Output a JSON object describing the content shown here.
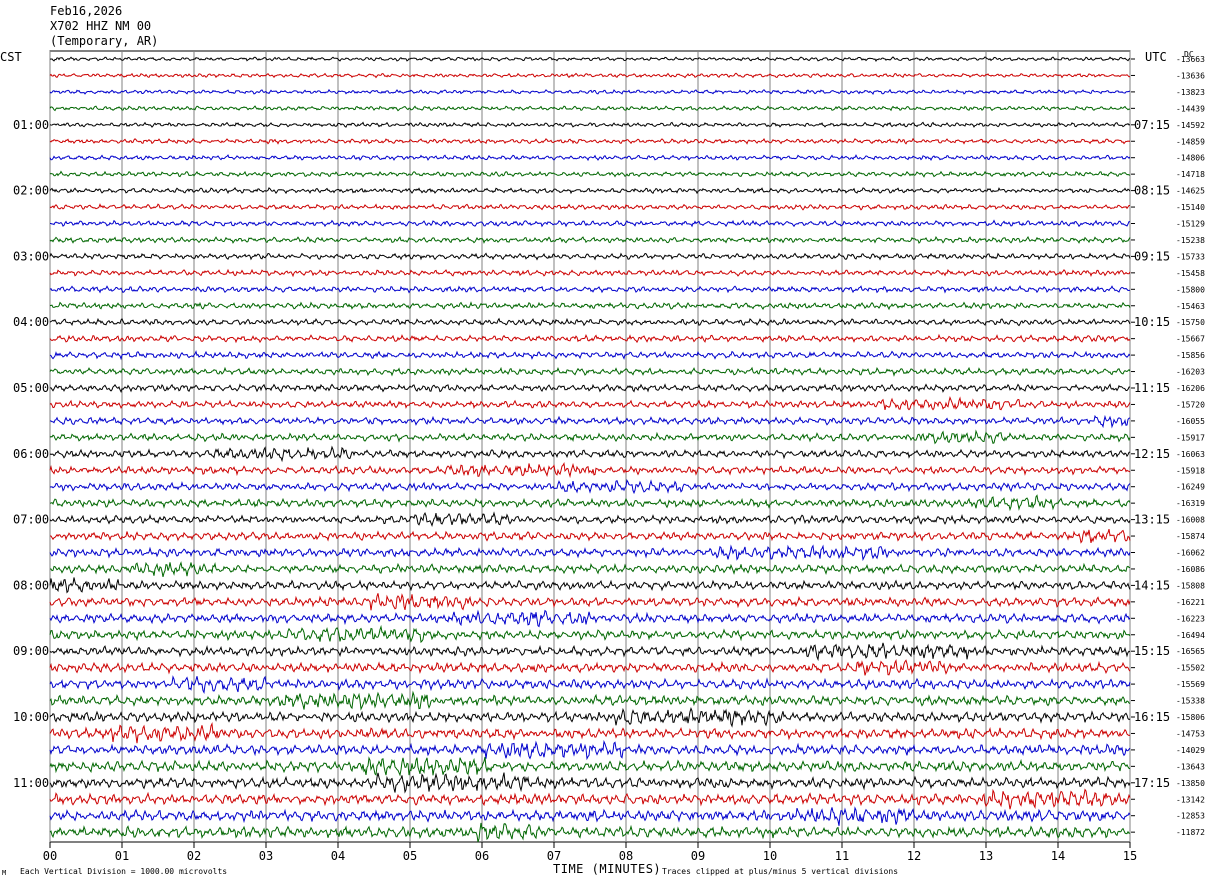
{
  "header": {
    "date": "Feb16,2026",
    "station": "X702 HHZ NM 00",
    "network": "(Temporary, AR)"
  },
  "labels": {
    "left_timezone": "CST",
    "right_timezone": "UTC",
    "dc_label": "DC",
    "footer_left": "Each Vertical Division = 1000.00 microvolts",
    "footer_right": "Traces clipped at plus/minus 5 vertical divisions",
    "footer_mark": "M"
  },
  "colors": {
    "trace_cycle": [
      "#000000",
      "#cc0000",
      "#0000cc",
      "#006600"
    ],
    "grid": "#808080"
  },
  "chart_data": {
    "type": "line",
    "title": "",
    "xlabel": "TIME (MINUTES)",
    "ylabel": "",
    "x_ticks": [
      "00",
      "01",
      "02",
      "03",
      "04",
      "05",
      "06",
      "07",
      "08",
      "09",
      "10",
      "11",
      "12",
      "13",
      "14",
      "15"
    ],
    "xlim": [
      0,
      15
    ],
    "grid": true,
    "rows": 48,
    "left_hour_labels": [
      "01:00",
      "02:00",
      "03:00",
      "04:00",
      "05:00",
      "06:00",
      "07:00",
      "08:00",
      "09:00",
      "10:00",
      "11:00"
    ],
    "right_hour_labels": [
      "07:15",
      "08:15",
      "09:15",
      "10:15",
      "11:15",
      "12:15",
      "13:15",
      "14:15",
      "15:15",
      "16:15",
      "17:15"
    ],
    "dc_offsets": [
      "-13663",
      "-13636",
      "-13823",
      "-14439",
      "-14592",
      "-14859",
      "-14806",
      "-14718",
      "-14625",
      "-15140",
      "-15129",
      "-15238",
      "-15733",
      "-15458",
      "-15800",
      "-15463",
      "-15750",
      "-15667",
      "-15856",
      "-16203",
      "-16206",
      "-15720",
      "-16055",
      "-15917",
      "-16063",
      "-15918",
      "-16249",
      "-16319",
      "-16008",
      "-15874",
      "-16062",
      "-16086",
      "-15808",
      "-16221",
      "-16223",
      "-16494",
      "-16565",
      "-15502",
      "-15569",
      "-15338",
      "-15806",
      "-14753",
      "-14029",
      "-13643",
      "-13850",
      "-13142",
      "-12853",
      "-11872"
    ]
  }
}
